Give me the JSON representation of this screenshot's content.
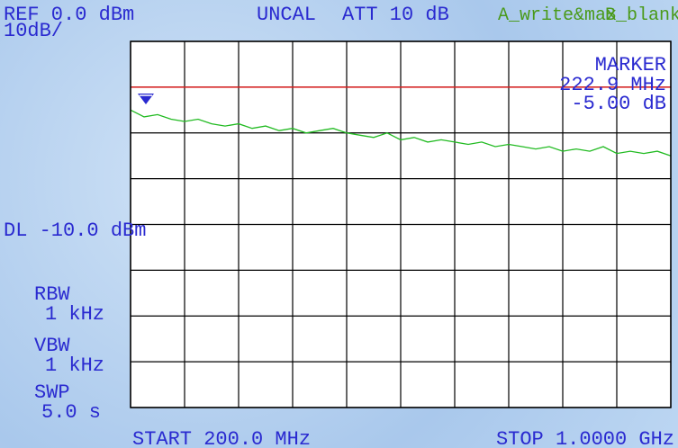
{
  "screen": {
    "ref": "REF 0.0 dBm",
    "scale": "10dB/",
    "uncal": "UNCAL",
    "att": "ATT 10 dB",
    "trace_a": "A_write&max",
    "trace_b": "B_blank",
    "marker_title": "MARKER",
    "marker_freq": "222.9 MHz",
    "marker_level": "-5.00 dB",
    "dl": "DL -10.0 dBm",
    "rbw_label": "RBW",
    "rbw": "1 kHz",
    "vbw_label": "VBW",
    "vbw": "1 kHz",
    "swp_label": "SWP",
    "swp": "5.0 s",
    "start": "START 200.0 MHz",
    "stop": "STOP 1.0000 GHz"
  },
  "chart_data": {
    "type": "line",
    "x": [
      200,
      220,
      240,
      260,
      280,
      300,
      320,
      340,
      360,
      380,
      400,
      420,
      440,
      460,
      480,
      500,
      520,
      540,
      560,
      580,
      600,
      620,
      640,
      660,
      680,
      700,
      720,
      740,
      760,
      780,
      800,
      820,
      840,
      860,
      880,
      900,
      920,
      940,
      960,
      980,
      1000
    ],
    "series": [
      {
        "name": "A_write&max",
        "color": "#22bb22",
        "values": [
          -15,
          -16.5,
          -16,
          -17,
          -17.5,
          -17,
          -18,
          -18.5,
          -18,
          -19,
          -18.5,
          -19.5,
          -19,
          -20,
          -19.5,
          -19,
          -20,
          -20.5,
          -21,
          -20,
          -21.5,
          -21,
          -22,
          -21.5,
          -22,
          -22.5,
          -22,
          -23,
          -22.5,
          -23,
          -23.5,
          -23,
          -24,
          -23.5,
          -24,
          -23,
          -24.5,
          -24,
          -24.5,
          -24,
          -25
        ]
      }
    ],
    "display_line": -10,
    "display_line_color": "#dd2222",
    "xlim": [
      200,
      1000
    ],
    "xticks": [
      200,
      280,
      360,
      440,
      520,
      600,
      680,
      760,
      840,
      920,
      1000
    ],
    "ylim": [
      -80,
      0
    ],
    "yticks": [
      0,
      -10,
      -20,
      -30,
      -40,
      -50,
      -60,
      -70,
      -80
    ],
    "grid": true
  }
}
